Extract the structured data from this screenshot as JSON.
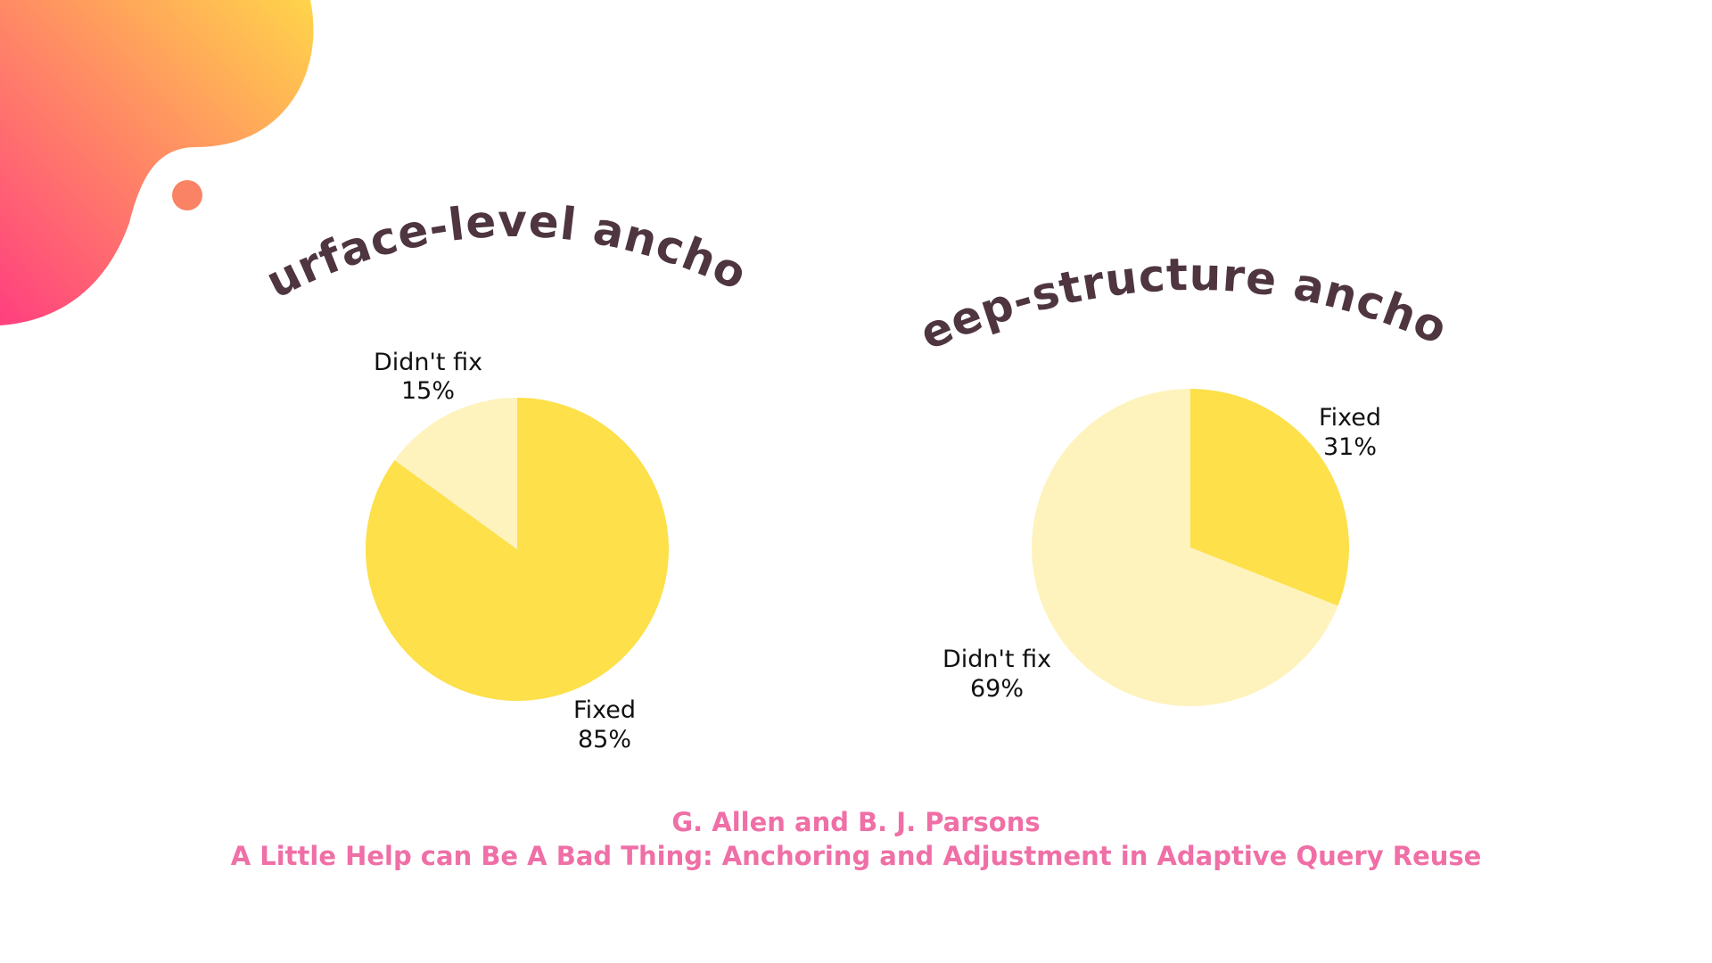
{
  "colors": {
    "title": "#4e3540",
    "credit": "#ef6fa6",
    "fixed": "#fde04a",
    "didnt_fix": "#fef3bd",
    "label": "#111111",
    "blob_start": "#ff3f7f",
    "blob_end": "#ffd54a",
    "dot": "#f98364"
  },
  "decorations": {
    "blob": "gradient-blob-shape",
    "dot": "orange-dot"
  },
  "chart_data": [
    {
      "type": "pie",
      "title": "Surface-level anchors",
      "slices": [
        {
          "label": "Fixed",
          "value": 85,
          "value_label": "85%"
        },
        {
          "label": "Didn't fix",
          "value": 15,
          "value_label": "15%"
        }
      ],
      "start_angle_deg": 0,
      "direction": "clockwise"
    },
    {
      "type": "pie",
      "title": "Deep-structure anchors",
      "slices": [
        {
          "label": "Fixed",
          "value": 31,
          "value_label": "31%"
        },
        {
          "label": "Didn't fix",
          "value": 69,
          "value_label": "69%"
        }
      ],
      "start_angle_deg": 0,
      "direction": "clockwise"
    }
  ],
  "credits": {
    "authors": "G. Allen and B. J. Parsons",
    "paper_title": "A Little Help can Be A Bad Thing: Anchoring and Adjustment in Adaptive Query Reuse"
  }
}
